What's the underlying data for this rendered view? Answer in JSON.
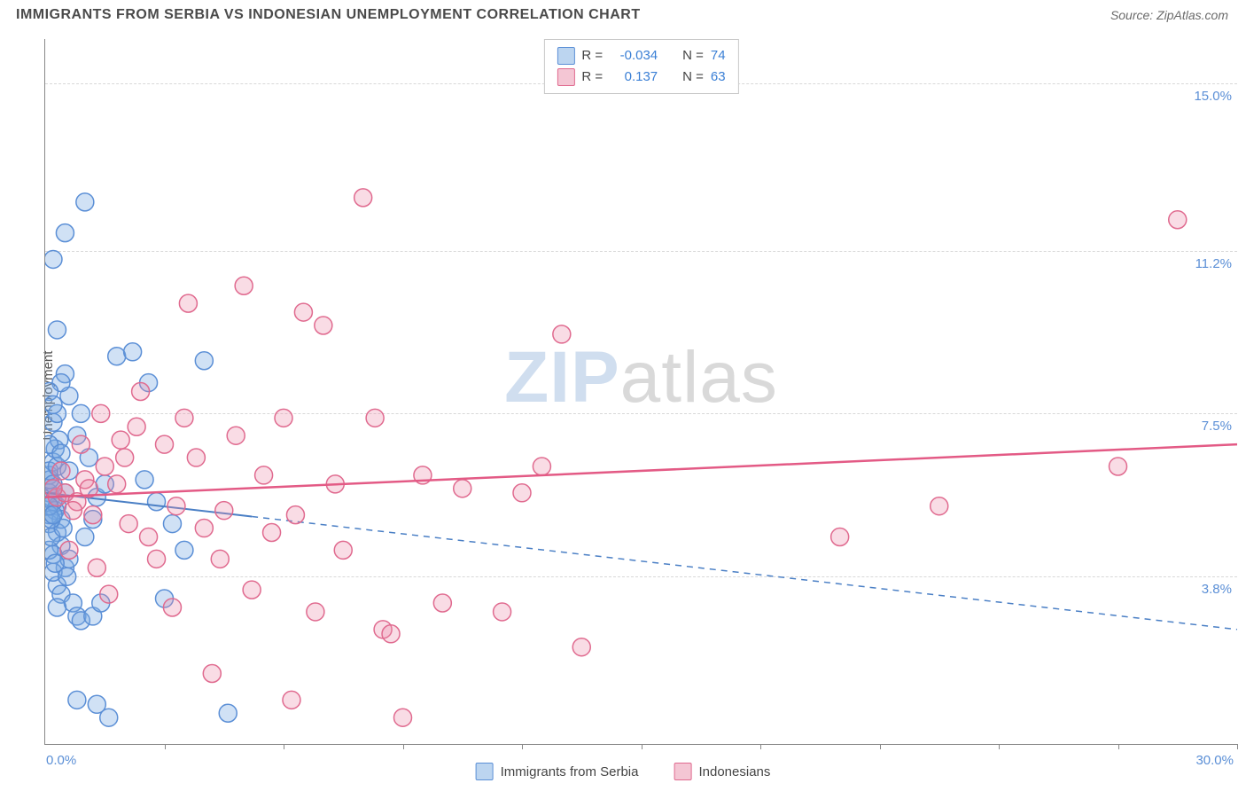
{
  "header": {
    "title": "IMMIGRANTS FROM SERBIA VS INDONESIAN UNEMPLOYMENT CORRELATION CHART",
    "source_prefix": "Source: ",
    "source_name": "ZipAtlas.com"
  },
  "watermark": {
    "part1": "ZIP",
    "part2": "atlas"
  },
  "chart": {
    "type": "scatter",
    "xlim": [
      0,
      30
    ],
    "ylim": [
      0,
      16
    ],
    "x_min_label": "0.0%",
    "x_max_label": "30.0%",
    "y_label": "Unemployment",
    "y_ticks": [
      {
        "v": 3.8,
        "label": "3.8%"
      },
      {
        "v": 7.5,
        "label": "7.5%"
      },
      {
        "v": 11.2,
        "label": "11.2%"
      },
      {
        "v": 15.0,
        "label": "15.0%"
      }
    ],
    "x_tick_positions": [
      3,
      6,
      9,
      12,
      15,
      18,
      21,
      24,
      27,
      30
    ],
    "grid_color": "#d8d8d8",
    "background_color": "#ffffff",
    "series": [
      {
        "name": "Immigrants from Serbia",
        "color_fill": "rgba(120,170,225,0.35)",
        "color_stroke": "#5b8fd6",
        "swatch_fill": "#bcd5f0",
        "swatch_border": "#5b8fd6",
        "R": "-0.034",
        "N": "74",
        "marker_radius": 10,
        "regression": {
          "y_at_xmin": 5.7,
          "y_at_xmax": 2.6,
          "dashed_after_x": 5.2,
          "color": "#4a7fc5",
          "width": 2
        },
        "points": [
          [
            0.1,
            5.7
          ],
          [
            0.15,
            5.6
          ],
          [
            0.2,
            5.8
          ],
          [
            0.1,
            6.1
          ],
          [
            0.12,
            6.0
          ],
          [
            0.2,
            6.4
          ],
          [
            0.1,
            6.2
          ],
          [
            0.3,
            5.4
          ],
          [
            0.25,
            5.3
          ],
          [
            0.1,
            5.0
          ],
          [
            0.3,
            4.8
          ],
          [
            0.4,
            4.5
          ],
          [
            0.2,
            4.3
          ],
          [
            0.5,
            4.0
          ],
          [
            0.6,
            4.2
          ],
          [
            0.3,
            3.6
          ],
          [
            0.4,
            3.4
          ],
          [
            0.7,
            3.2
          ],
          [
            0.8,
            2.9
          ],
          [
            0.9,
            2.8
          ],
          [
            1.2,
            2.9
          ],
          [
            1.4,
            3.2
          ],
          [
            1.0,
            4.7
          ],
          [
            1.2,
            5.1
          ],
          [
            1.3,
            5.6
          ],
          [
            1.5,
            5.9
          ],
          [
            1.1,
            6.5
          ],
          [
            0.8,
            7.0
          ],
          [
            0.9,
            7.5
          ],
          [
            0.6,
            7.9
          ],
          [
            0.5,
            8.4
          ],
          [
            0.4,
            8.2
          ],
          [
            0.3,
            9.4
          ],
          [
            0.2,
            11.0
          ],
          [
            0.5,
            11.6
          ],
          [
            1.0,
            12.3
          ],
          [
            1.8,
            8.8
          ],
          [
            2.2,
            8.9
          ],
          [
            2.6,
            8.2
          ],
          [
            2.5,
            6.0
          ],
          [
            2.8,
            5.5
          ],
          [
            3.0,
            3.3
          ],
          [
            3.2,
            5.0
          ],
          [
            3.5,
            4.4
          ],
          [
            4.0,
            8.7
          ],
          [
            1.6,
            0.6
          ],
          [
            4.6,
            0.7
          ],
          [
            1.3,
            0.9
          ],
          [
            0.8,
            1.0
          ],
          [
            0.2,
            5.5
          ],
          [
            0.2,
            5.9
          ],
          [
            0.3,
            6.3
          ],
          [
            0.4,
            5.1
          ],
          [
            0.5,
            5.7
          ],
          [
            0.6,
            6.2
          ],
          [
            0.1,
            4.4
          ],
          [
            0.2,
            7.3
          ],
          [
            0.3,
            7.5
          ],
          [
            0.1,
            5.2
          ],
          [
            0.15,
            4.7
          ],
          [
            0.25,
            6.7
          ],
          [
            0.1,
            8.0
          ],
          [
            0.2,
            3.9
          ],
          [
            0.35,
            6.9
          ],
          [
            0.45,
            4.9
          ],
          [
            0.1,
            6.8
          ],
          [
            0.55,
            3.8
          ],
          [
            0.2,
            7.7
          ],
          [
            0.15,
            5.1
          ],
          [
            0.25,
            4.1
          ],
          [
            0.3,
            3.1
          ],
          [
            0.1,
            5.4
          ],
          [
            0.4,
            6.6
          ],
          [
            0.2,
            5.2
          ]
        ]
      },
      {
        "name": "Indonesians",
        "color_fill": "rgba(235,140,170,0.30)",
        "color_stroke": "#e06a8f",
        "swatch_fill": "#f4c6d4",
        "swatch_border": "#e06a8f",
        "R": "0.137",
        "N": "63",
        "marker_radius": 10,
        "regression": {
          "y_at_xmin": 5.6,
          "y_at_xmax": 6.8,
          "dashed_after_x": 30,
          "color": "#e35a85",
          "width": 2.5
        },
        "points": [
          [
            0.3,
            5.6
          ],
          [
            0.5,
            5.7
          ],
          [
            0.8,
            5.5
          ],
          [
            1.0,
            6.0
          ],
          [
            1.2,
            5.2
          ],
          [
            1.5,
            6.3
          ],
          [
            1.8,
            5.9
          ],
          [
            2.0,
            6.5
          ],
          [
            2.3,
            7.2
          ],
          [
            2.6,
            4.7
          ],
          [
            3.0,
            6.8
          ],
          [
            3.2,
            3.1
          ],
          [
            3.5,
            7.4
          ],
          [
            4.0,
            4.9
          ],
          [
            4.2,
            1.6
          ],
          [
            4.5,
            5.3
          ],
          [
            5.0,
            10.4
          ],
          [
            5.2,
            3.5
          ],
          [
            5.5,
            6.1
          ],
          [
            6.0,
            7.4
          ],
          [
            6.2,
            1.0
          ],
          [
            6.5,
            9.8
          ],
          [
            6.8,
            3.0
          ],
          [
            7.0,
            9.5
          ],
          [
            7.3,
            5.9
          ],
          [
            8.0,
            12.4
          ],
          [
            8.3,
            7.4
          ],
          [
            8.5,
            2.6
          ],
          [
            8.7,
            2.5
          ],
          [
            9.0,
            0.6
          ],
          [
            9.5,
            6.1
          ],
          [
            10.0,
            3.2
          ],
          [
            10.5,
            5.8
          ],
          [
            11.5,
            3.0
          ],
          [
            12.0,
            5.7
          ],
          [
            12.5,
            6.3
          ],
          [
            13.0,
            9.3
          ],
          [
            13.5,
            2.2
          ],
          [
            20.0,
            4.7
          ],
          [
            22.5,
            5.4
          ],
          [
            27.0,
            6.3
          ],
          [
            28.5,
            11.9
          ],
          [
            0.4,
            6.2
          ],
          [
            0.6,
            4.4
          ],
          [
            0.9,
            6.8
          ],
          [
            1.3,
            4.0
          ],
          [
            1.6,
            3.4
          ],
          [
            2.1,
            5.0
          ],
          [
            2.4,
            8.0
          ],
          [
            2.8,
            4.2
          ],
          [
            3.3,
            5.4
          ],
          [
            3.8,
            6.5
          ],
          [
            4.4,
            4.2
          ],
          [
            4.8,
            7.0
          ],
          [
            5.7,
            4.8
          ],
          [
            6.3,
            5.2
          ],
          [
            7.5,
            4.4
          ],
          [
            3.6,
            10.0
          ],
          [
            0.2,
            5.8
          ],
          [
            0.7,
            5.3
          ],
          [
            1.1,
            5.8
          ],
          [
            1.4,
            7.5
          ],
          [
            1.9,
            6.9
          ]
        ]
      }
    ]
  },
  "legend": {
    "stats_rows": [
      {
        "swatch": 0,
        "r_label": "R = ",
        "r_val": "-0.034",
        "n_label": "N = ",
        "n_val": "74"
      },
      {
        "swatch": 1,
        "r_label": "R = ",
        "r_val": "0.137",
        "n_label": "N = ",
        "n_val": "63"
      }
    ],
    "bottom": [
      {
        "swatch": 0,
        "label": "Immigrants from Serbia"
      },
      {
        "swatch": 1,
        "label": "Indonesians"
      }
    ]
  }
}
